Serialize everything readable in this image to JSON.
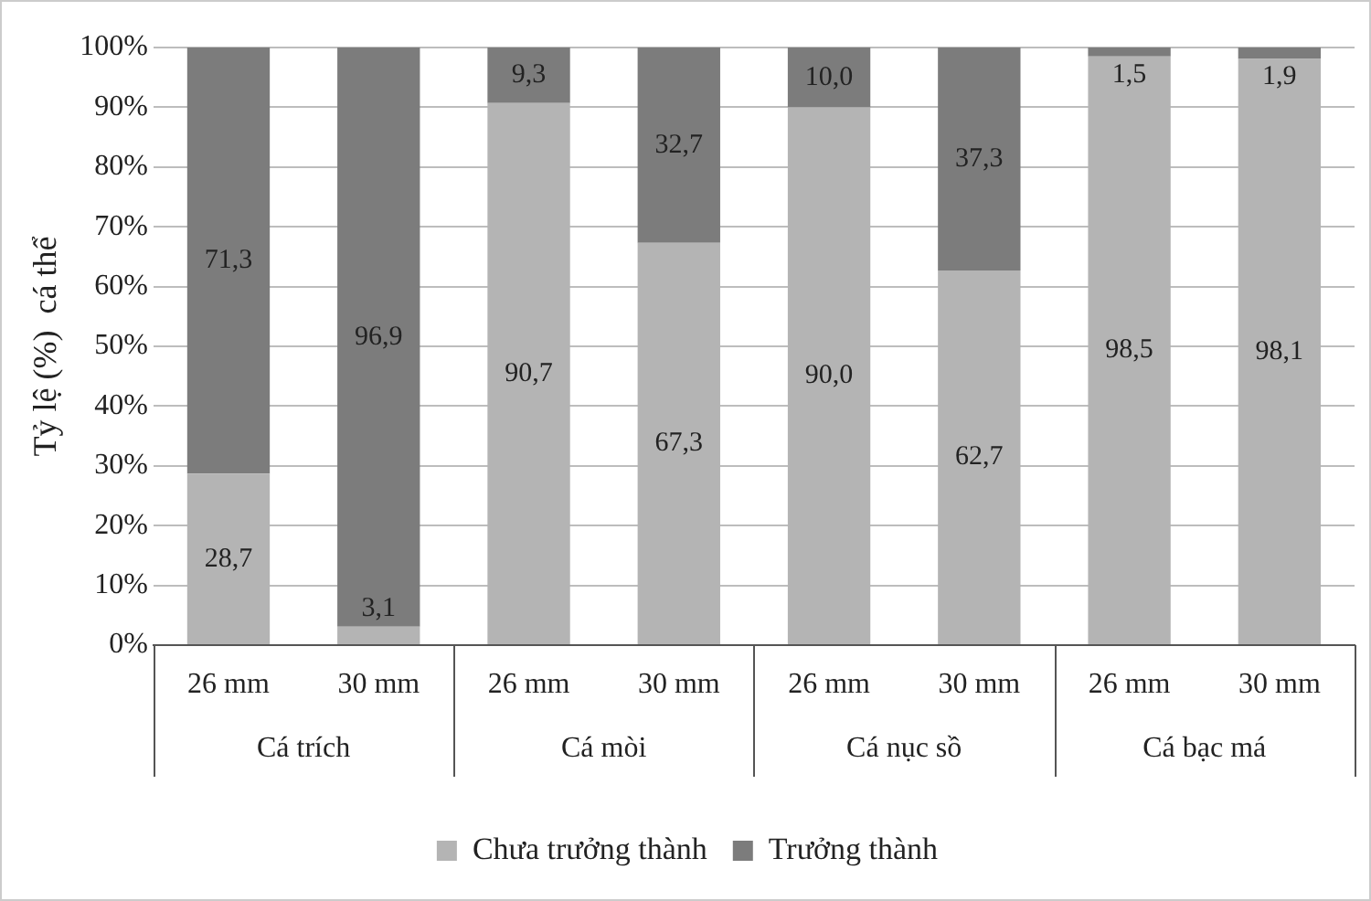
{
  "chart_data": {
    "type": "bar",
    "stacked": true,
    "ylabel": "Tỷ lệ (%)  cá thể",
    "categories": [
      "26 mm",
      "30 mm",
      "26 mm",
      "30 mm",
      "26 mm",
      "30 mm",
      "26 mm",
      "30 mm"
    ],
    "annotations": [
      "Cá trích",
      "Cá mòi",
      "Cá nục sồ",
      "Cá bạc má"
    ],
    "series": [
      {
        "name": "Chưa trưởng thành",
        "color": "#b4b4b4",
        "values": [
          28.7,
          3.1,
          90.7,
          67.3,
          90.0,
          62.7,
          98.5,
          98.1
        ],
        "value_labels": [
          "28,7",
          "3,1",
          "90,7",
          "67,3",
          "90,0",
          "62,7",
          "98,5",
          "98,1"
        ]
      },
      {
        "name": "Trưởng thành",
        "color": "#7c7c7c",
        "values": [
          71.3,
          96.9,
          9.3,
          32.7,
          10.0,
          37.3,
          1.5,
          1.9
        ],
        "value_labels": [
          "71,3",
          "96,9",
          "9,3",
          "32,7",
          "10,0",
          "37,3",
          "1,5",
          "1,9"
        ]
      }
    ],
    "ylim": [
      0,
      100
    ],
    "yticks": [
      {
        "value": 0,
        "label": "0%"
      },
      {
        "value": 10,
        "label": "10%"
      },
      {
        "value": 20,
        "label": "20%"
      },
      {
        "value": 30,
        "label": "30%"
      },
      {
        "value": 40,
        "label": "40%"
      },
      {
        "value": 50,
        "label": "50%"
      },
      {
        "value": 60,
        "label": "60%"
      },
      {
        "value": 70,
        "label": "70%"
      },
      {
        "value": 80,
        "label": "80%"
      },
      {
        "value": 90,
        "label": "90%"
      },
      {
        "value": 100,
        "label": "100%"
      }
    ],
    "grid": "y",
    "legend": "bottom"
  }
}
